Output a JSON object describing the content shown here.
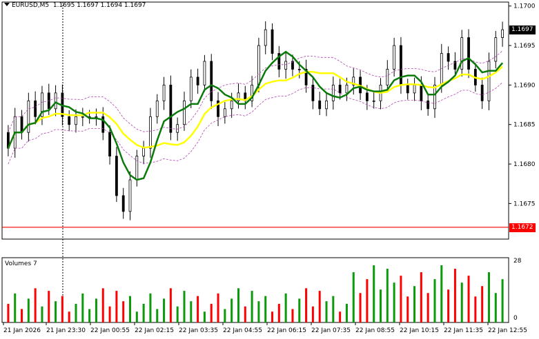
{
  "chart_header": {
    "symbol_tf": "EURUSD,M5",
    "ohlc": "1.1695 1.1697 1.1694 1.1697"
  },
  "volumes_label": "Volumes 7",
  "current_price": "1.1697",
  "level_price": "1.1672",
  "colors": {
    "background": "#ffffff",
    "candle": "#000000",
    "ma_fast": "#0a7a0a",
    "ma_slow": "#ffff00",
    "bollinger": "#b044b0",
    "level_line": "#ff0000",
    "volume_up": "#0a9a0a",
    "volume_down": "#ff0000",
    "current_badge": "#000000",
    "level_badge": "#ff0000"
  },
  "chart_data": {
    "type": "candlestick",
    "price_axis_ticks": [
      "1.1700",
      "1.1695",
      "1.1690",
      "1.1685",
      "1.1680",
      "1.1675"
    ],
    "ylim": [
      1.16705,
      1.17005
    ],
    "volume_axis_ticks": [
      "28",
      "0"
    ],
    "volume_ylim": [
      0,
      28
    ],
    "time_axis_labels": [
      "21 Jan 2026",
      "21 Jan 23:30",
      "22 Jan 00:55",
      "22 Jan 02:15",
      "22 Jan 03:35",
      "22 Jan 04:55",
      "22 Jan 06:15",
      "22 Jan 07:35",
      "22 Jan 08:55",
      "22 Jan 10:15",
      "22 Jan 11:35",
      "22 Jan 12:55"
    ],
    "horizontal_level": 1.1672,
    "series": [
      {
        "name": "close_path",
        "values": [
          1.1682,
          1.1686,
          1.1684,
          1.1688,
          1.1686,
          1.1689,
          1.1687,
          1.1689,
          1.1686,
          1.1685,
          1.1686,
          1.1686,
          1.1686,
          1.1686,
          1.1684,
          1.1681,
          1.1676,
          1.1674,
          1.1678,
          1.1681,
          1.1682,
          1.1686,
          1.1688,
          1.169,
          1.1684,
          1.1685,
          1.1688,
          1.1691,
          1.169,
          1.1693,
          1.1688,
          1.1686,
          1.1687,
          1.1688,
          1.1689,
          1.1688,
          1.169,
          1.1695,
          1.1697,
          1.1694,
          1.1692,
          1.1693,
          1.1692,
          1.1692,
          1.169,
          1.1688,
          1.1687,
          1.1688,
          1.169,
          1.1689,
          1.169,
          1.1691,
          1.1689,
          1.1688,
          1.1688,
          1.169,
          1.1692,
          1.1695,
          1.169,
          1.1689,
          1.169,
          1.1688,
          1.1687,
          1.169,
          1.1694,
          1.1693,
          1.1692,
          1.1696,
          1.1692,
          1.169,
          1.1688,
          1.1693,
          1.1696,
          1.1697
        ]
      }
    ]
  }
}
